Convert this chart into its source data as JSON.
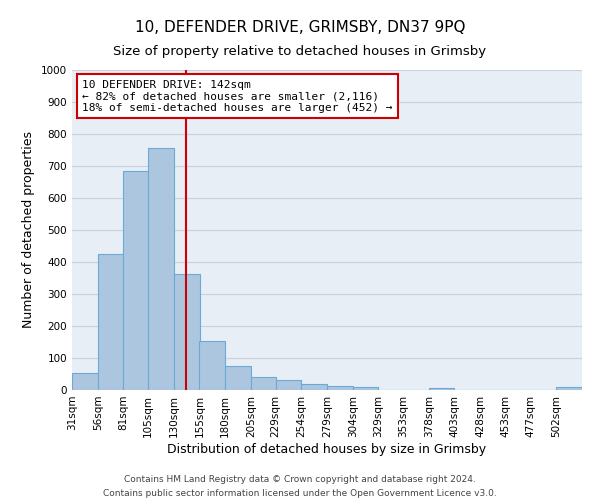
{
  "title": "10, DEFENDER DRIVE, GRIMSBY, DN37 9PQ",
  "subtitle": "Size of property relative to detached houses in Grimsby",
  "xlabel": "Distribution of detached houses by size in Grimsby",
  "ylabel": "Number of detached properties",
  "bin_edges": [
    31,
    56,
    81,
    105,
    130,
    155,
    180,
    205,
    229,
    254,
    279,
    304,
    329,
    353,
    378,
    403,
    428,
    453,
    477,
    502,
    527
  ],
  "values": [
    52,
    425,
    685,
    757,
    363,
    153,
    75,
    42,
    32,
    18,
    12,
    8,
    0,
    0,
    5,
    0,
    0,
    0,
    0,
    8
  ],
  "bar_color": "#adc6df",
  "bar_edge_color": "#6aaad4",
  "bg_color": "#e8eef6",
  "grid_color": "#c8d0dc",
  "marker_value": 142,
  "marker_color": "#cc0000",
  "annotation_line1": "10 DEFENDER DRIVE: 142sqm",
  "annotation_line2": "← 82% of detached houses are smaller (2,116)",
  "annotation_line3": "18% of semi-detached houses are larger (452) →",
  "annotation_box_color": "#ffffff",
  "annotation_border_color": "#cc0000",
  "footer_line1": "Contains HM Land Registry data © Crown copyright and database right 2024.",
  "footer_line2": "Contains public sector information licensed under the Open Government Licence v3.0.",
  "ylim": [
    0,
    1000
  ],
  "title_fontsize": 11,
  "subtitle_fontsize": 9.5,
  "xlabel_fontsize": 9,
  "ylabel_fontsize": 9,
  "tick_fontsize": 7.5,
  "annotation_fontsize": 8,
  "footer_fontsize": 6.5
}
